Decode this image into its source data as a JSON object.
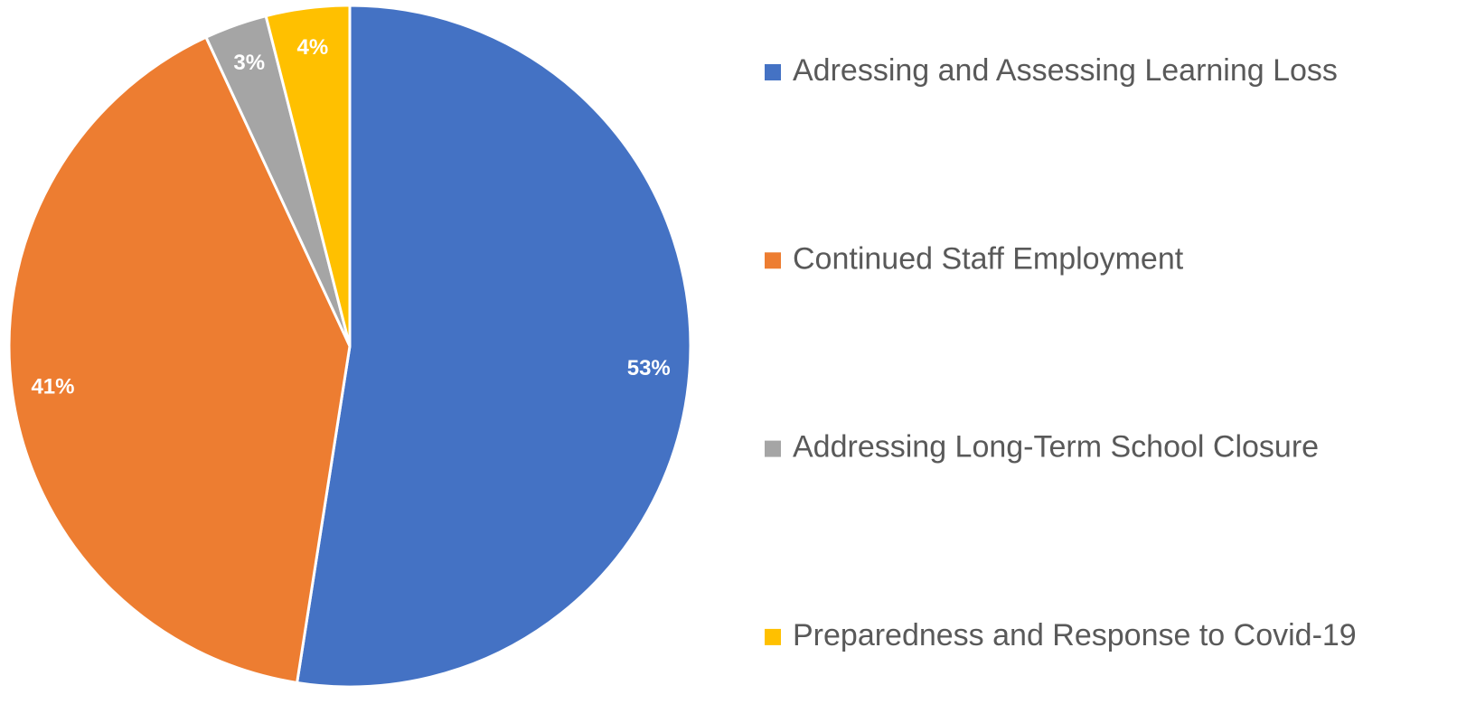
{
  "chart_data": {
    "type": "pie",
    "categories": [
      "Adressing and Assessing Learning Loss",
      "Continued Staff Employment",
      "Addressing Long-Term School Closure",
      "Preparedness and Response to Covid-19"
    ],
    "values": [
      53,
      41,
      3,
      4
    ],
    "value_labels": [
      "53%",
      "41%",
      "3%",
      "4%"
    ],
    "colors": [
      "#4472c4",
      "#ed7d31",
      "#a5a5a5",
      "#ffc000"
    ],
    "legend": "right"
  }
}
